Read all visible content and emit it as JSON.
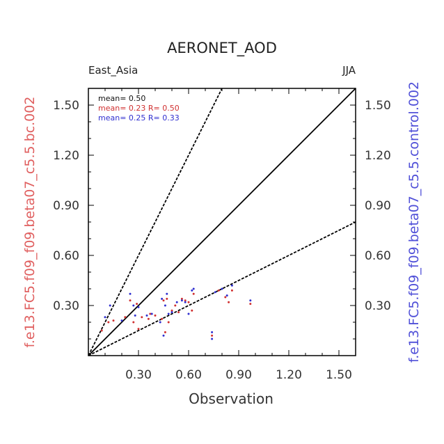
{
  "chart_data": {
    "type": "scatter",
    "title": "AERONET_AOD",
    "region_label": "East_Asia",
    "season_label": "JJA",
    "xlabel": "Observation",
    "ylabel_left": "f.e13.FC5.f09_f09.beta07_c5.5.bc.002",
    "ylabel_right": "f.e13.FC5.f09_f09.beta07_c5.5.control.002",
    "xlim": [
      0,
      1.6
    ],
    "ylim": [
      0,
      1.6
    ],
    "xticks": [
      "0.30",
      "0.60",
      "0.90",
      "1.20",
      "1.50"
    ],
    "yticks": [
      "0.30",
      "0.60",
      "0.90",
      "1.20",
      "1.50"
    ],
    "stats": {
      "obs": "mean= 0.50",
      "left": "mean= 0.23 R= 0.50",
      "right": "mean= 0.25 R= 0.33"
    },
    "reference_lines": [
      {
        "slope": 1,
        "style": "solid"
      },
      {
        "slope": 2,
        "style": "dashed"
      },
      {
        "slope": 0.5,
        "style": "dashed"
      }
    ],
    "series": [
      {
        "color": "#d03030",
        "x": [
          0.08,
          0.12,
          0.15,
          0.22,
          0.25,
          0.27,
          0.29,
          0.3,
          0.32,
          0.36,
          0.37,
          0.4,
          0.44,
          0.45,
          0.46,
          0.47,
          0.48,
          0.5,
          0.52,
          0.54,
          0.56,
          0.58,
          0.6,
          0.62,
          0.63,
          0.74,
          0.78,
          0.82,
          0.84,
          0.86,
          0.97
        ],
        "y": [
          0.15,
          0.2,
          0.21,
          0.23,
          0.33,
          0.2,
          0.31,
          0.16,
          0.23,
          0.22,
          0.25,
          0.24,
          0.22,
          0.33,
          0.14,
          0.34,
          0.2,
          0.27,
          0.3,
          0.26,
          0.34,
          0.33,
          0.32,
          0.27,
          0.37,
          0.12,
          0.39,
          0.35,
          0.32,
          0.39,
          0.31
        ]
      },
      {
        "color": "#3030d0",
        "x": [
          0.1,
          0.13,
          0.2,
          0.25,
          0.27,
          0.28,
          0.3,
          0.35,
          0.38,
          0.43,
          0.44,
          0.45,
          0.46,
          0.47,
          0.48,
          0.5,
          0.53,
          0.56,
          0.58,
          0.6,
          0.62,
          0.63,
          0.74,
          0.74,
          0.76,
          0.8,
          0.83,
          0.86,
          0.97
        ],
        "y": [
          0.23,
          0.3,
          0.21,
          0.37,
          0.3,
          0.24,
          0.29,
          0.24,
          0.25,
          0.2,
          0.34,
          0.12,
          0.3,
          0.37,
          0.25,
          0.26,
          0.32,
          0.33,
          0.32,
          0.25,
          0.39,
          0.4,
          0.14,
          0.1,
          0.38,
          0.4,
          0.36,
          0.42,
          0.33
        ]
      }
    ]
  }
}
